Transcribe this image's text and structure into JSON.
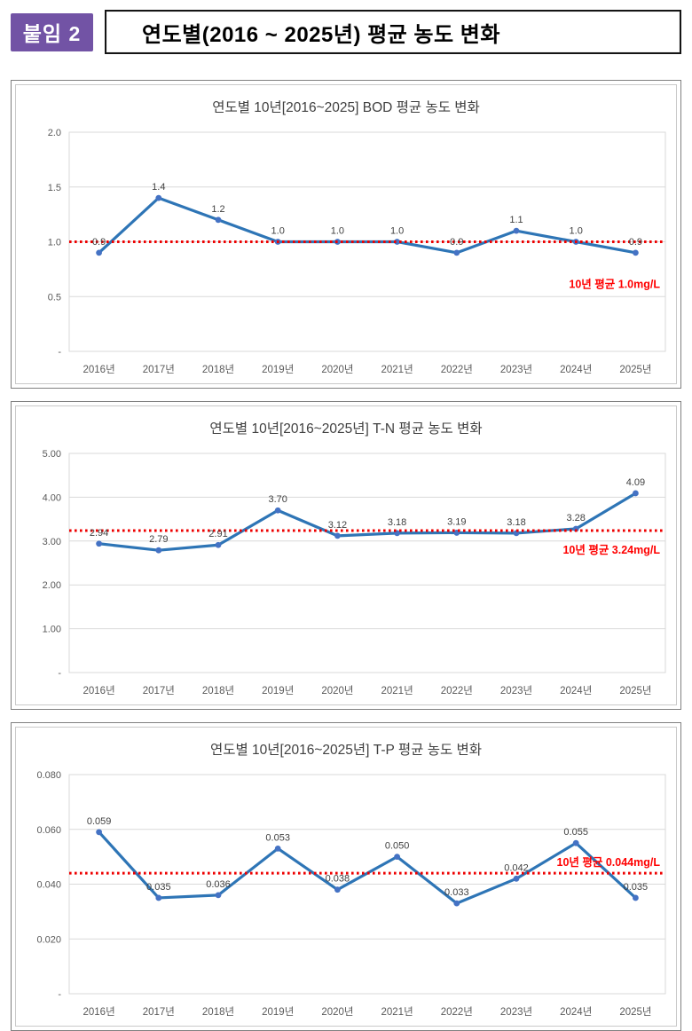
{
  "header": {
    "badge": "붙임 2",
    "title": "연도별(2016 ~ 2025년) 평균 농도 변화"
  },
  "colors": {
    "badge_bg": "#7253a5",
    "series_line": "#2E75B6",
    "series_marker": "#4472C4",
    "average_line": "#EE0000",
    "average_label": "#FF0000",
    "gridline": "#D9D9D9",
    "tick_text": "#595959",
    "data_label": "#404040"
  },
  "chart_data": [
    {
      "type": "line",
      "title": "연도별 10년[2016~2025] BOD 평균 농도 변화",
      "categories": [
        "2016년",
        "2017년",
        "2018년",
        "2019년",
        "2020년",
        "2021년",
        "2022년",
        "2023년",
        "2024년",
        "2025년"
      ],
      "values": [
        0.9,
        1.4,
        1.2,
        1.0,
        1.0,
        1.0,
        0.9,
        1.1,
        1.0,
        0.9
      ],
      "value_labels": [
        "0.9",
        "1.4",
        "1.2",
        "1.0",
        "1.0",
        "1.0",
        "0.9",
        "1.1",
        "1.0",
        "0.9"
      ],
      "xlabel": "",
      "ylabel": "",
      "ylim": [
        0,
        2.0
      ],
      "yticks": [
        {
          "v": 2.0,
          "t": "2.0"
        },
        {
          "v": 1.5,
          "t": "1.5"
        },
        {
          "v": 1.0,
          "t": "1.0"
        },
        {
          "v": 0.5,
          "t": "0.5"
        },
        {
          "v": 0.0,
          "t": "-"
        }
      ],
      "average": 1.0,
      "average_label": "10년 평균 1.0mg/L",
      "avg_label_dy": 52,
      "grid": true,
      "legend_position": "none"
    },
    {
      "type": "line",
      "title": "연도별 10년[2016~2025년] T-N 평균 농도 변화",
      "categories": [
        "2016년",
        "2017년",
        "2018년",
        "2019년",
        "2020년",
        "2021년",
        "2022년",
        "2023년",
        "2024년",
        "2025년"
      ],
      "values": [
        2.94,
        2.79,
        2.91,
        3.7,
        3.12,
        3.18,
        3.19,
        3.18,
        3.28,
        4.09
      ],
      "value_labels": [
        "2.94",
        "2.79",
        "2.91",
        "3.70",
        "3.12",
        "3.18",
        "3.19",
        "3.18",
        "3.28",
        "4.09"
      ],
      "xlabel": "",
      "ylabel": "",
      "ylim": [
        0,
        5.0
      ],
      "yticks": [
        {
          "v": 5.0,
          "t": "5.00"
        },
        {
          "v": 4.0,
          "t": "4.00"
        },
        {
          "v": 3.0,
          "t": "3.00"
        },
        {
          "v": 2.0,
          "t": "2.00"
        },
        {
          "v": 1.0,
          "t": "1.00"
        },
        {
          "v": 0.0,
          "t": "-"
        }
      ],
      "average": 3.24,
      "average_label": "10년 평균 3.24mg/L",
      "avg_label_dy": 26,
      "grid": true,
      "legend_position": "none"
    },
    {
      "type": "line",
      "title": "연도별 10년[2016~2025년] T-P 평균 농도 변화",
      "categories": [
        "2016년",
        "2017년",
        "2018년",
        "2019년",
        "2020년",
        "2021년",
        "2022년",
        "2023년",
        "2024년",
        "2025년"
      ],
      "values": [
        0.059,
        0.035,
        0.036,
        0.053,
        0.038,
        0.05,
        0.033,
        0.042,
        0.055,
        0.035
      ],
      "value_labels": [
        "0.059",
        "0.035",
        "0.036",
        "0.053",
        "0.038",
        "0.050",
        "0.033",
        "0.042",
        "0.055",
        "0.035"
      ],
      "xlabel": "",
      "ylabel": "",
      "ylim": [
        0,
        0.08
      ],
      "yticks": [
        {
          "v": 0.08,
          "t": "0.080"
        },
        {
          "v": 0.06,
          "t": "0.060"
        },
        {
          "v": 0.04,
          "t": "0.040"
        },
        {
          "v": 0.02,
          "t": "0.020"
        },
        {
          "v": 0.0,
          "t": "-"
        }
      ],
      "average": 0.044,
      "average_label": "10년 평균 0.044mg/L",
      "avg_label_dy": -8,
      "grid": true,
      "legend_position": "none"
    }
  ]
}
